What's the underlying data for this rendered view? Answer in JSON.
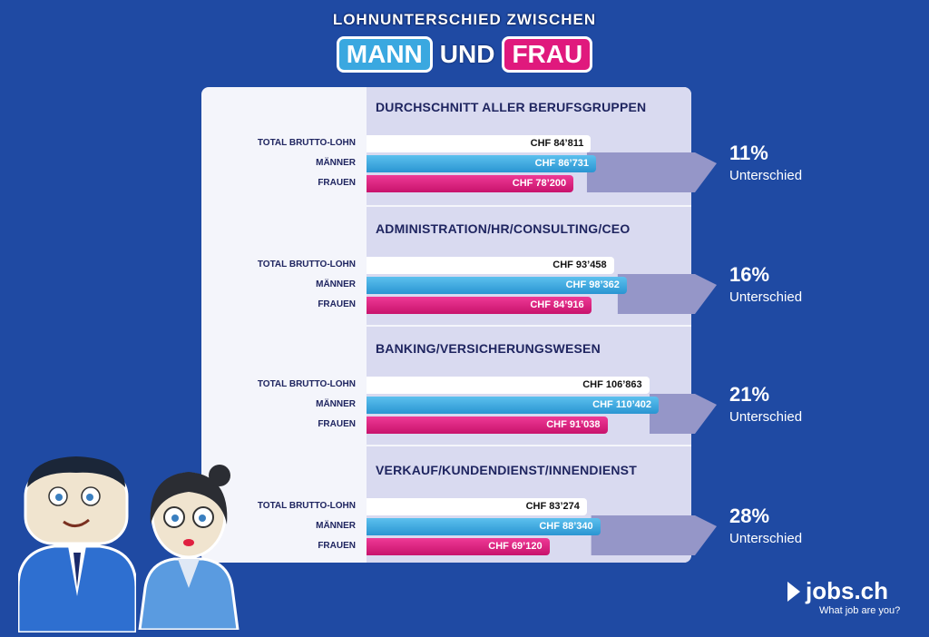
{
  "title": {
    "line1": "LOHNUNTERSCHIED ZWISCHEN",
    "word_man": "MANN",
    "word_und": "UND",
    "word_woman": "FRAU"
  },
  "labels": {
    "total": "TOTAL BRUTTO-LOHN",
    "men": "MÄNNER",
    "women": "FRAUEN",
    "difference": "Unterschied"
  },
  "colors": {
    "background": "#1f4aa3",
    "men": "#3aa8e0",
    "women": "#e0197d",
    "total": "#ffffff"
  },
  "chart_data": {
    "type": "bar",
    "currency": "CHF",
    "categories": [
      "DURCHSCHNITT ALLER BERUFSGRUPPEN",
      "ADMINISTRATION/HR/CONSULTING/CEO",
      "BANKING/VERSICHERUNGSWESEN",
      "VERKAUF/KUNDENDIENST/INNENDIENST"
    ],
    "series": [
      {
        "name": "TOTAL BRUTTO-LOHN",
        "values": [
          84811,
          93458,
          106863,
          83274
        ]
      },
      {
        "name": "MÄNNER",
        "values": [
          86731,
          98362,
          110402,
          88340
        ]
      },
      {
        "name": "FRAUEN",
        "values": [
          78200,
          84916,
          91038,
          69120
        ]
      }
    ],
    "value_labels": [
      [
        "CHF 84’811",
        "CHF 86’731",
        "CHF 78’200"
      ],
      [
        "CHF 93’458",
        "CHF 98’362",
        "CHF 84’916"
      ],
      [
        "CHF 106’863",
        "CHF 110’402",
        "CHF 91’038"
      ],
      [
        "CHF 83’274",
        "CHF 88’340",
        "CHF 69’120"
      ]
    ],
    "differences": [
      "11%",
      "16%",
      "21%",
      "28%"
    ]
  },
  "logo": {
    "name": "jobs.ch",
    "tagline": "What job are you?"
  }
}
